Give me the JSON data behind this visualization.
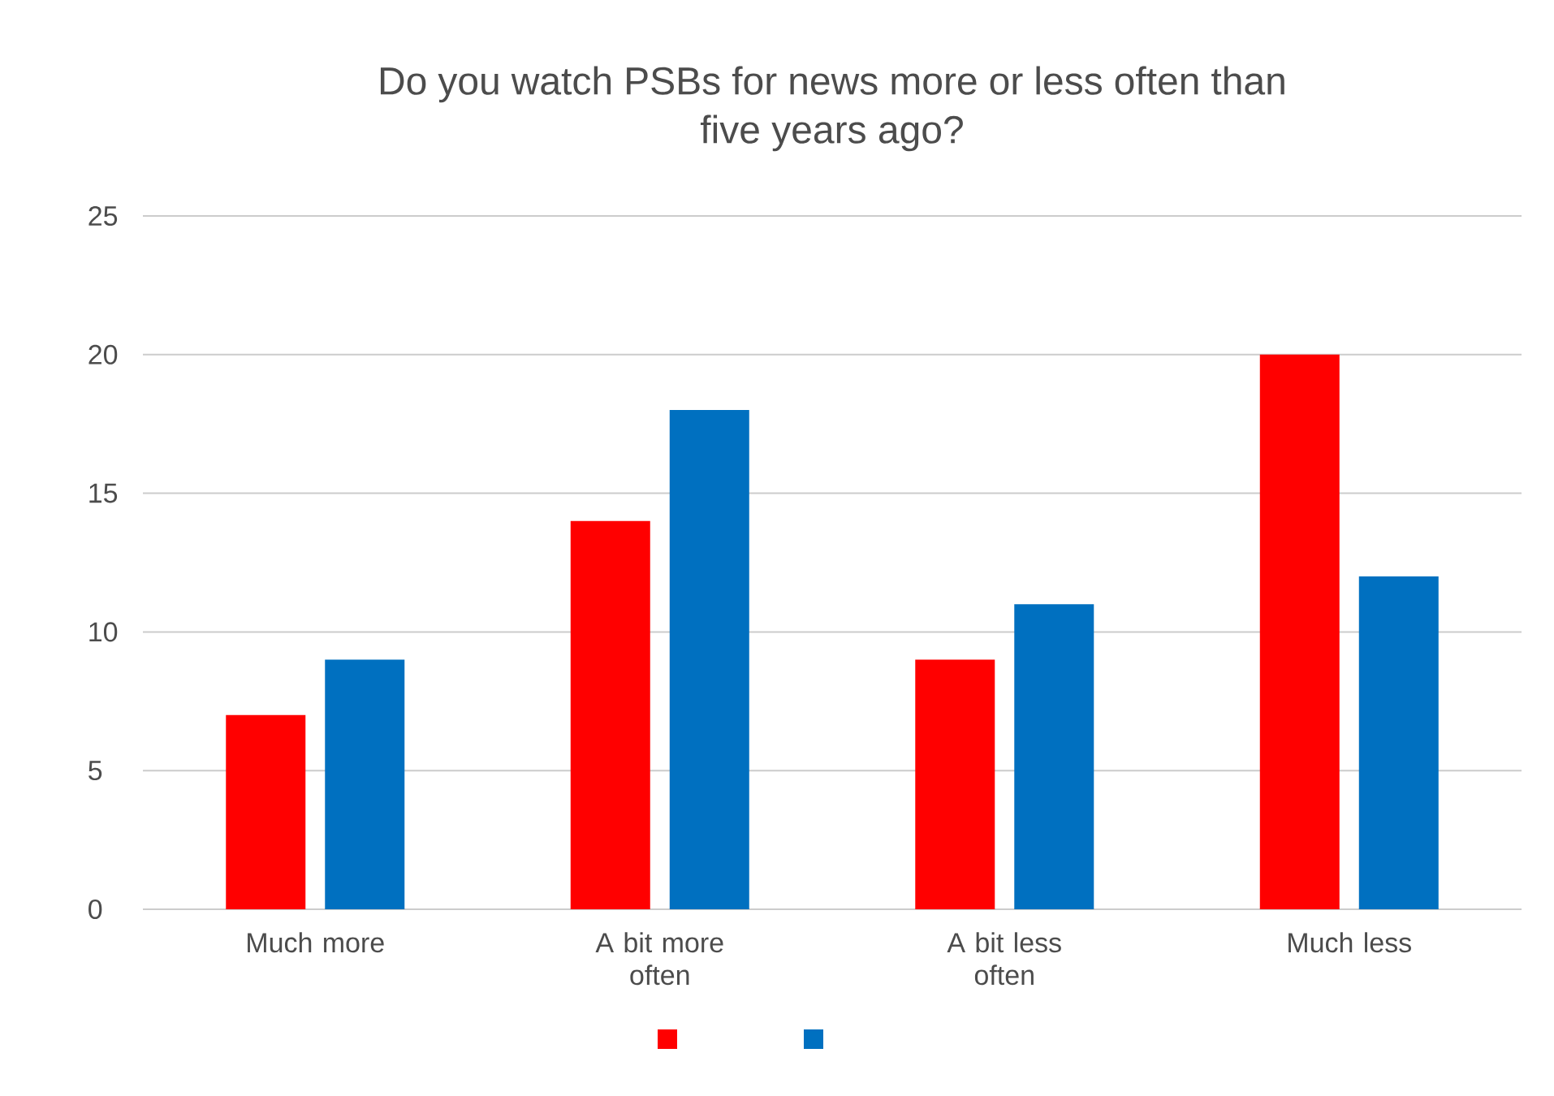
{
  "chart_data": {
    "type": "bar",
    "title": "Do you watch PSBs for news more or less often than five years ago?",
    "categories": [
      "Much more",
      "A bit more often",
      "A bit less often",
      "Much less"
    ],
    "series": [
      {
        "color": "#ff0000",
        "values": [
          7,
          14,
          9,
          20
        ]
      },
      {
        "color": "#0070c0",
        "values": [
          9,
          18,
          11,
          12
        ]
      }
    ],
    "ylim": [
      0,
      25
    ],
    "yticks": [
      0,
      5,
      10,
      15,
      20,
      25
    ],
    "grid": "y"
  }
}
